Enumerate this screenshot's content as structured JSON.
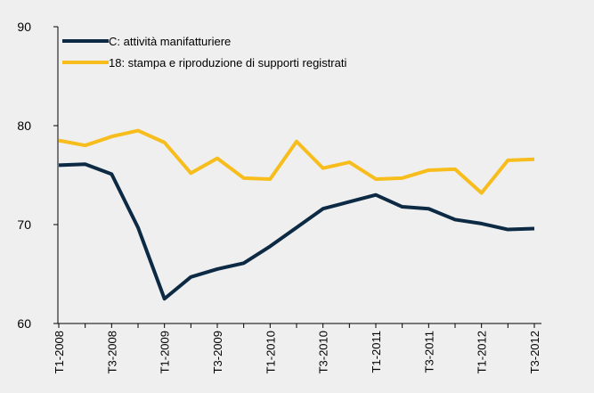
{
  "chart_data": {
    "type": "line",
    "categories": [
      "T1-2008",
      null,
      "T3-2008",
      null,
      "T1-2009",
      null,
      "T3-2009",
      null,
      "T1-2010",
      null,
      "T3-2010",
      null,
      "T1-2011",
      null,
      "T3-2011",
      null,
      "T1-2012",
      null,
      "T3-2012"
    ],
    "series": [
      {
        "name": "C: attività manifatturiere",
        "color": "#0d2a44",
        "values": [
          76.0,
          76.1,
          75.1,
          69.7,
          62.5,
          64.7,
          65.5,
          66.1,
          67.8,
          69.7,
          71.6,
          72.3,
          73.0,
          71.8,
          71.6,
          70.5,
          70.1,
          69.5,
          69.6
        ]
      },
      {
        "name": "18: stampa e riproduzione di supporti registrati",
        "color": "#f7bd1c",
        "values": [
          78.5,
          78.0,
          78.9,
          79.5,
          78.3,
          75.2,
          76.7,
          74.7,
          74.6,
          78.4,
          75.7,
          76.3,
          74.6,
          74.7,
          75.5,
          75.6,
          73.2,
          76.5,
          76.6
        ]
      }
    ],
    "ylim": [
      60,
      90
    ],
    "yticks": [
      60,
      70,
      80,
      90
    ],
    "grid": false,
    "legend": "upper left"
  }
}
